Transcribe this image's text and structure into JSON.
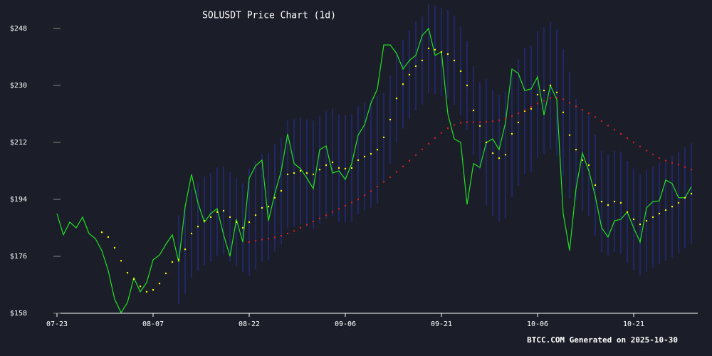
{
  "chart_data": {
    "type": "line",
    "title": "SOLUSDT Price Chart (1d)",
    "footer": "BTCC.COM Generated on 2025-10-30",
    "background": "#1b1e29",
    "ylim": [
      158,
      257
    ],
    "yticks": [
      {
        "value": 158,
        "label": "$158"
      },
      {
        "value": 176,
        "label": "$176"
      },
      {
        "value": 194,
        "label": "$194"
      },
      {
        "value": 212,
        "label": "$212"
      },
      {
        "value": 230,
        "label": "$230"
      },
      {
        "value": 248,
        "label": "$248"
      }
    ],
    "categories": [
      "07-23",
      null,
      null,
      null,
      null,
      null,
      null,
      null,
      null,
      null,
      null,
      null,
      null,
      null,
      null,
      "08-07",
      null,
      null,
      null,
      null,
      null,
      null,
      null,
      null,
      null,
      null,
      null,
      null,
      null,
      null,
      "08-22",
      null,
      null,
      null,
      null,
      null,
      null,
      null,
      null,
      null,
      null,
      null,
      null,
      null,
      null,
      "09-06",
      null,
      null,
      null,
      null,
      null,
      null,
      null,
      null,
      null,
      null,
      null,
      null,
      null,
      null,
      "09-21",
      null,
      null,
      null,
      null,
      null,
      null,
      null,
      null,
      null,
      null,
      null,
      null,
      null,
      null,
      "10-06",
      null,
      null,
      null,
      null,
      null,
      null,
      null,
      null,
      null,
      null,
      null,
      null,
      null,
      null,
      "10-21",
      null,
      null,
      null,
      null,
      null,
      null,
      null,
      null,
      null
    ],
    "bands": {
      "color": "#232a7a",
      "upper": [
        null,
        null,
        null,
        null,
        null,
        null,
        null,
        null,
        null,
        null,
        null,
        null,
        null,
        null,
        null,
        null,
        null,
        null,
        null,
        188.9,
        192.2,
        197.2,
        199.4,
        201.2,
        202.4,
        204,
        204.4,
        202.4,
        200.8,
        199,
        203.8,
        206,
        208.3,
        208.7,
        211.5,
        213.7,
        218.9,
        219.3,
        220,
        219.3,
        218.9,
        220.4,
        221.8,
        222.7,
        220.9,
        220.7,
        220.9,
        223.4,
        224.5,
        225.4,
        226.7,
        227.6,
        233.2,
        239.9,
        244.4,
        247.4,
        250.1,
        251.9,
        255.7,
        255.3,
        254.6,
        253.9,
        251.9,
        248.5,
        244,
        236.1,
        231.2,
        232,
        228.6,
        227,
        228.1,
        234.7,
        238.3,
        241.9,
        242.6,
        247.1,
        248.4,
        250,
        247.8,
        241.5,
        234.3,
        225.7,
        222.4,
        220.8,
        214.5,
        209.3,
        208.2,
        209.3,
        208.9,
        206,
        203.7,
        202.1,
        203.2,
        204.4,
        205.5,
        206.6,
        207.7,
        208.9,
        210.5,
        211.8
      ],
      "lower": [
        null,
        null,
        null,
        null,
        null,
        null,
        null,
        null,
        null,
        null,
        null,
        null,
        null,
        null,
        null,
        null,
        null,
        null,
        null,
        160.9,
        164.2,
        169.2,
        171.4,
        173.2,
        174.4,
        176,
        176.4,
        174.4,
        172.8,
        171,
        169.8,
        172,
        174.3,
        174.7,
        177.5,
        179.7,
        184.9,
        185.3,
        186,
        185.3,
        184.9,
        186.4,
        187.8,
        188.7,
        186.9,
        186.7,
        186.9,
        189.4,
        190.5,
        191.4,
        192.7,
        199.6,
        205.2,
        211.9,
        216.4,
        219.4,
        222.1,
        223.9,
        227.7,
        227.3,
        226.6,
        225.9,
        223.9,
        220.5,
        216,
        208.1,
        203.2,
        192,
        188.6,
        187,
        188.1,
        194.7,
        198.3,
        201.9,
        202.6,
        207.1,
        208.4,
        210,
        207.8,
        201.5,
        194.3,
        193.7,
        190.4,
        188.8,
        182.5,
        177.3,
        176.2,
        177.3,
        176.9,
        174,
        171.7,
        170.1,
        171.2,
        172.4,
        173.5,
        174.6,
        175.7,
        176.9,
        178.5,
        179.8
      ]
    },
    "series": [
      {
        "color": "#22e022",
        "style": "line",
        "values": [
          189.5,
          182.8,
          186.8,
          185,
          188.4,
          183.2,
          181.6,
          177.8,
          171.5,
          162.5,
          158.2,
          161.4,
          169.2,
          164.8,
          167.7,
          174.9,
          176.4,
          179.8,
          182.8,
          174.2,
          191.7,
          201.9,
          192.9,
          186.8,
          189.5,
          191.1,
          182.8,
          176,
          187.7,
          180.5,
          200.7,
          204.6,
          206.4,
          187.2,
          195.8,
          203,
          214.7,
          205.3,
          203.7,
          200.7,
          197.4,
          209.7,
          210.9,
          202.3,
          203,
          200.3,
          205.3,
          214.3,
          217.6,
          224.4,
          228.9,
          242.8,
          242.8,
          240.1,
          235.2,
          237.9,
          239.5,
          245.8,
          248,
          239.5,
          240.6,
          221,
          213.1,
          212,
          192.4,
          205.3,
          204.1,
          212,
          213.1,
          209.7,
          218.3,
          235.2,
          233.8,
          228.4,
          228.9,
          232.7,
          220.6,
          230,
          225.5,
          189.5,
          177.8,
          197.4,
          208.6,
          203,
          195.1,
          185,
          182.1,
          187.2,
          187.7,
          190,
          185,
          180.5,
          191.3,
          193.3,
          193.5,
          200.1,
          199,
          194.5,
          194.5,
          198
        ]
      },
      {
        "color": "#ffff00",
        "style": "dots",
        "values": [
          null,
          null,
          null,
          null,
          null,
          null,
          null,
          183.6,
          182.1,
          178.7,
          174.6,
          170.8,
          168.8,
          166.5,
          164.8,
          165.4,
          167.4,
          170.6,
          174.2,
          174.9,
          178.2,
          183.2,
          185.4,
          187.2,
          188.4,
          190,
          190.4,
          188.4,
          186.8,
          185,
          186.8,
          189,
          191.3,
          191.7,
          194.5,
          196.7,
          201.9,
          202.3,
          203,
          202.3,
          201.9,
          203.4,
          204.8,
          205.7,
          203.9,
          203.7,
          203.9,
          206.4,
          207.5,
          208.4,
          209.7,
          213.6,
          219.2,
          225.9,
          230.4,
          233.4,
          236.1,
          237.9,
          241.7,
          241.3,
          240.6,
          239.9,
          237.9,
          234.5,
          230,
          222.1,
          217.2,
          212,
          208.6,
          207,
          208.1,
          214.7,
          218.3,
          221.9,
          222.6,
          227.1,
          228.4,
          230,
          227.8,
          221.5,
          214.3,
          209.7,
          206.4,
          204.8,
          198.5,
          193.3,
          192.2,
          193.3,
          192.9,
          190,
          187.7,
          186.1,
          187.2,
          188.4,
          189.5,
          190.6,
          191.7,
          192.9,
          194.5,
          195.8
        ]
      },
      {
        "color": "#d42020",
        "style": "dots",
        "values": [
          null,
          null,
          null,
          null,
          null,
          null,
          null,
          null,
          null,
          null,
          null,
          null,
          null,
          null,
          null,
          null,
          null,
          null,
          null,
          null,
          null,
          null,
          null,
          null,
          null,
          null,
          null,
          null,
          null,
          null,
          180.5,
          180.9,
          181.3,
          181.6,
          182,
          182.5,
          183.2,
          184,
          185,
          186,
          187,
          188,
          189,
          190,
          191,
          192,
          193,
          194,
          195.3,
          196.6,
          198,
          199.5,
          201,
          202.7,
          204.4,
          206.2,
          208,
          209.8,
          211.6,
          213.4,
          215,
          216.5,
          217.5,
          218.2,
          218.4,
          218.4,
          218.4,
          218.5,
          218.7,
          219,
          219.5,
          220.3,
          221.2,
          222.2,
          223.2,
          224.3,
          225.2,
          226,
          226.2,
          225.6,
          224.5,
          223.4,
          222.3,
          221.2,
          220,
          218.7,
          217.3,
          216,
          214.7,
          213.3,
          212,
          210.7,
          209.4,
          208.2,
          207.1,
          206.2,
          205.5,
          205,
          204.2,
          203.4
        ]
      }
    ]
  }
}
